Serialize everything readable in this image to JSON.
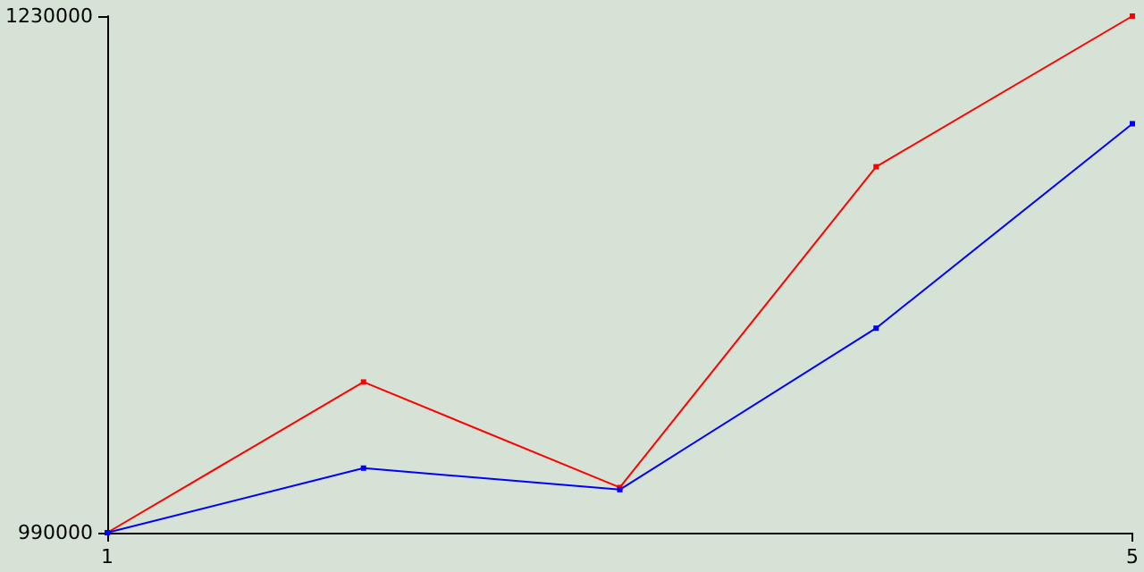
{
  "chart_data": {
    "type": "line",
    "x": [
      1,
      2,
      3,
      4,
      5
    ],
    "series": [
      {
        "color": "#ff0000",
        "values": [
          990000,
          1060000,
          1011000,
          1160000,
          1230000
        ]
      },
      {
        "color": "#0000ff",
        "values": [
          990000,
          1020000,
          1010000,
          1085000,
          1180000
        ]
      }
    ],
    "xlim": [
      1,
      5
    ],
    "xticks": [
      1,
      5
    ],
    "ylim": [
      990000,
      1230000
    ],
    "yticks": [
      990000,
      1230000
    ],
    "grid": false,
    "marker": "square",
    "line_style": "solid"
  }
}
